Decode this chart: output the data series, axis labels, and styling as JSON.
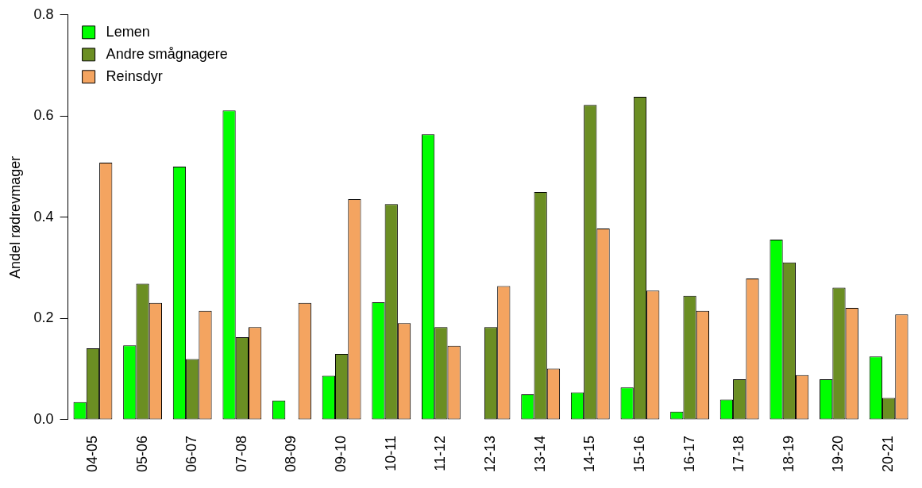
{
  "chart_data": {
    "type": "bar",
    "ylabel": "Andel rødrevmager",
    "categories": [
      "04-05",
      "05-06",
      "06-07",
      "07-08",
      "08-09",
      "09-10",
      "10-11",
      "11-12",
      "12-13",
      "13-14",
      "14-15",
      "15-16",
      "16-17",
      "17-18",
      "18-19",
      "19-20",
      "20-21"
    ],
    "series": [
      {
        "name": "Lemen",
        "color": "#00ff00",
        "values": [
          0.035,
          0.147,
          0.5,
          0.611,
          0.038,
          0.087,
          0.232,
          0.564,
          0.0,
          0.05,
          0.054,
          0.064,
          0.016,
          0.04,
          0.356,
          0.08,
          0.125
        ]
      },
      {
        "name": "Andre smågnagere",
        "color": "#6b8e23",
        "values": [
          0.141,
          0.269,
          0.12,
          0.163,
          0.0,
          0.13,
          0.426,
          0.183,
          0.183,
          0.45,
          0.622,
          0.638,
          0.245,
          0.08,
          0.311,
          0.261,
          0.043
        ]
      },
      {
        "name": "Reinsdyr",
        "color": "#f4a460",
        "values": [
          0.508,
          0.231,
          0.215,
          0.183,
          0.231,
          0.436,
          0.191,
          0.146,
          0.264,
          0.101,
          0.378,
          0.255,
          0.215,
          0.279,
          0.088,
          0.221,
          0.208
        ]
      }
    ],
    "ylim": [
      0,
      0.8
    ],
    "yticks": [
      {
        "value": 0,
        "label": "0.0"
      },
      {
        "value": 0.2,
        "label": "0.2"
      },
      {
        "value": 0.4,
        "label": "0.4"
      },
      {
        "value": 0.6,
        "label": "0.6"
      },
      {
        "value": 0.8,
        "label": "0.8"
      }
    ],
    "grid": false,
    "legend": "top left"
  }
}
